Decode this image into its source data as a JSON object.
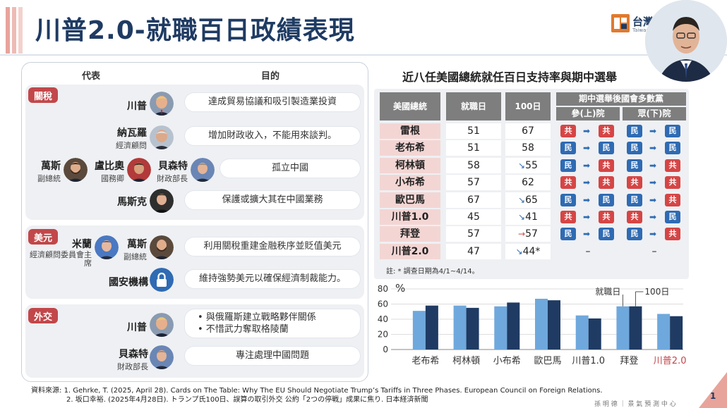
{
  "title": "川普2.0-就職百日政績表現",
  "logo": {
    "text": "台灣",
    "sub": "Taiwan"
  },
  "left": {
    "col_rep": "代表",
    "col_goal": "目的",
    "sections": [
      {
        "tag": "關稅",
        "rows": [
          {
            "names": [
              {
                "name": "川普",
                "title": ""
              }
            ],
            "goal": "達成貿易協議和吸引製造業投資"
          },
          {
            "names": [
              {
                "name": "納瓦羅",
                "title": "經濟顧問"
              }
            ],
            "goal": "增加財政收入，不能用來談判。"
          },
          {
            "names": [
              {
                "name": "萬斯",
                "title": "副總統"
              },
              {
                "name": "盧比奧",
                "title": "國務卿"
              },
              {
                "name": "貝森特",
                "title": "財政部長"
              }
            ],
            "goal": "孤立中國"
          },
          {
            "names": [
              {
                "name": "馬斯克",
                "title": ""
              }
            ],
            "goal": "保護或擴大其在中國業務"
          }
        ]
      },
      {
        "tag": "美元",
        "rows": [
          {
            "names": [
              {
                "name": "米蘭",
                "title": "經濟顧問委員會主席"
              },
              {
                "name": "萬斯",
                "title": "副總統"
              }
            ],
            "goal": "利用關稅重建金融秩序並貶值美元"
          },
          {
            "names": [
              {
                "name": "國安機構",
                "title": ""
              }
            ],
            "goal": "維持強勢美元以確保經濟制裁能力。"
          }
        ]
      },
      {
        "tag": "外交",
        "rows": [
          {
            "names": [
              {
                "name": "川普",
                "title": ""
              }
            ],
            "goal_lines": [
              "• 與俄羅斯建立戰略夥伴關係",
              "• 不惜武力奪取格陵蘭"
            ]
          },
          {
            "names": [
              {
                "name": "貝森特",
                "title": "財政部長"
              }
            ],
            "goal": "專注處理中國問題"
          }
        ]
      }
    ]
  },
  "right": {
    "title": "近八任美國總統就任百日支持率與期中選舉",
    "headers": {
      "president": "美國總統",
      "inaug": "就職日",
      "day100": "100日",
      "midterm": "期中選舉後國會多數黨",
      "senate": "參(上)院",
      "house": "眾(下)院"
    },
    "rows": [
      {
        "name": "雷根",
        "inaug": "51",
        "day100": "67",
        "trend": "",
        "senate": [
          "共",
          "共"
        ],
        "house": [
          "民",
          "民"
        ]
      },
      {
        "name": "老布希",
        "inaug": "51",
        "day100": "58",
        "trend": "",
        "senate": [
          "民",
          "民"
        ],
        "house": [
          "民",
          "民"
        ]
      },
      {
        "name": "柯林頓",
        "inaug": "58",
        "day100": "55",
        "trend": "↘",
        "senate": [
          "民",
          "共"
        ],
        "house": [
          "民",
          "共"
        ]
      },
      {
        "name": "小布希",
        "inaug": "57",
        "day100": "62",
        "trend": "",
        "senate": [
          "共",
          "共"
        ],
        "house": [
          "共",
          "共"
        ]
      },
      {
        "name": "歐巴馬",
        "inaug": "67",
        "day100": "65",
        "trend": "↘",
        "senate": [
          "民",
          "民"
        ],
        "house": [
          "民",
          "共"
        ]
      },
      {
        "name": "川普1.0",
        "inaug": "45",
        "day100": "41",
        "trend": "↘",
        "senate": [
          "共",
          "共"
        ],
        "house": [
          "共",
          "民"
        ]
      },
      {
        "name": "拜登",
        "inaug": "57",
        "day100": "57",
        "trend": "→",
        "senate": [
          "民",
          "民"
        ],
        "house": [
          "民",
          "共"
        ]
      },
      {
        "name": "川普2.0",
        "inaug": "47",
        "day100": "44*",
        "trend": "↘",
        "senate": [
          "–"
        ],
        "house": [
          "–"
        ]
      }
    ],
    "note": "註: * 調查日期為4/1~4/14。"
  },
  "chart_data": {
    "type": "bar",
    "categories": [
      "老布希",
      "柯林頓",
      "小布希",
      "歐巴馬",
      "川普1.0",
      "拜登",
      "川普2.0"
    ],
    "series": [
      {
        "name": "就職日",
        "values": [
          51,
          58,
          57,
          67,
          45,
          57,
          47
        ]
      },
      {
        "name": "100日",
        "values": [
          58,
          55,
          62,
          65,
          41,
          57,
          44
        ]
      }
    ],
    "ylabel": "%",
    "ylim": [
      0,
      80
    ],
    "yticks": [
      0,
      20,
      40,
      60,
      80
    ],
    "grid": true,
    "colors": {
      "inaug": "#6fa8dc",
      "day100": "#1f3b63",
      "highlight": "#c2474a"
    }
  },
  "sources": {
    "label": "資料來源:",
    "line1": "1. Gehrke, T. (2025, April 28). Cards on The Table: Why The EU Should Negotiate Trump’s Tariffs in Three Phases. European Council on Foreign Relations.",
    "line2": "2. 坂口幸裕. (2025年4月28日). トランプ氏100日、誤算の取引外交 公約「2つの停戦」成果に焦り. 日本経済新聞"
  },
  "page_number": "1",
  "footer": "孫 明 德 ｜ 景 氣 預 測 中 心"
}
